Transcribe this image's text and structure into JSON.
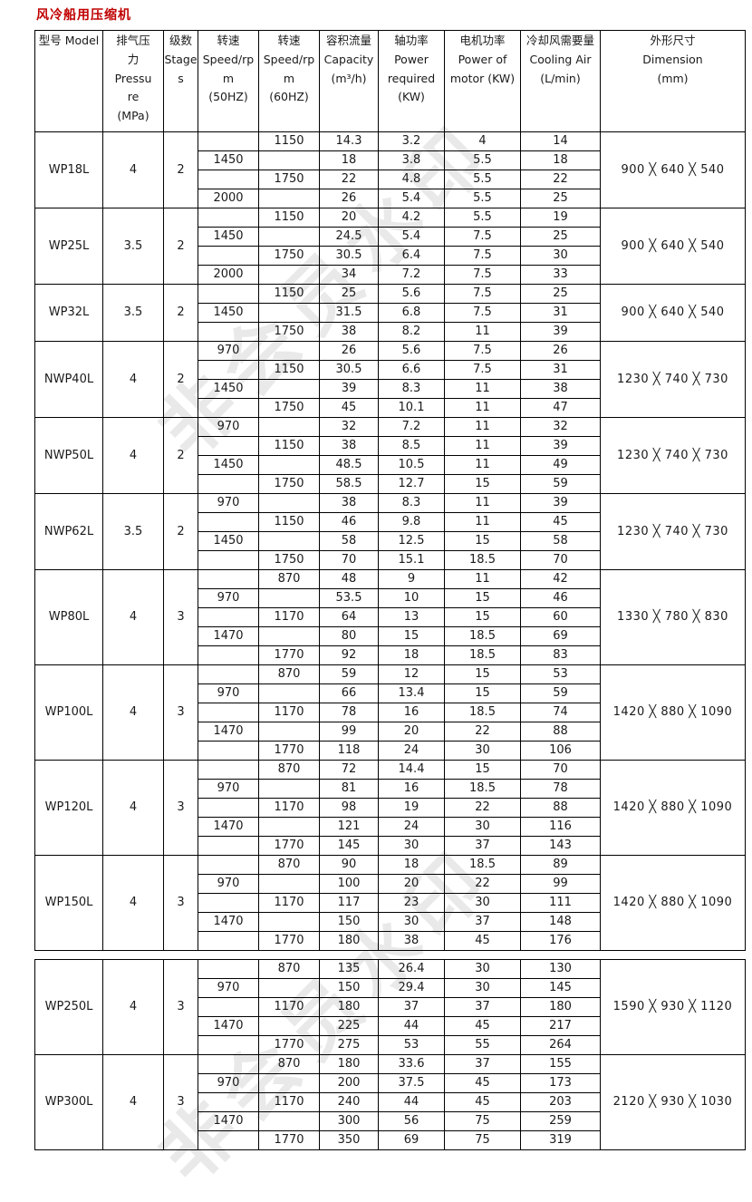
{
  "page": {
    "title": "风冷船用压缩机"
  },
  "watermark": {
    "text": "非会员水印"
  },
  "table": {
    "headers": {
      "model": "型号 Model",
      "pressure_lines": [
        "排气压",
        "力",
        "Pressu",
        "re",
        "(MPa)"
      ],
      "stage_lines": [
        "级数",
        "Stage",
        "s"
      ],
      "speed50_lines": [
        "转速",
        "Speed/rp",
        "m",
        "(50HZ)"
      ],
      "speed60_lines": [
        "转速",
        "Speed/rp",
        "m",
        "(60HZ)"
      ],
      "capacity_lines": [
        "容积流量",
        "Capacity",
        "(m³/h)"
      ],
      "power_lines": [
        "轴功率",
        "Power",
        "required",
        "(KW)"
      ],
      "motor_lines": [
        "电机功率",
        "Power of",
        "motor (KW)"
      ],
      "air_lines": [
        "冷却风需要量",
        "Cooling Air",
        "(L/min)"
      ],
      "dimension_lines": [
        "外形尺寸",
        "Dimension",
        "(mm)"
      ]
    },
    "sections": [
      {
        "groups": [
          {
            "model": "WP18L",
            "pressure": "4",
            "stage": "2",
            "dimension": "900 ╳ 640 ╳ 540",
            "rows": [
              [
                "",
                "1150",
                "14.3",
                "3.2",
                "4",
                "14"
              ],
              [
                "1450",
                "",
                "18",
                "3.8",
                "5.5",
                "18"
              ],
              [
                "",
                "1750",
                "22",
                "4.8",
                "5.5",
                "22"
              ],
              [
                "2000",
                "",
                "26",
                "5.4",
                "5.5",
                "25"
              ]
            ]
          },
          {
            "model": "WP25L",
            "pressure": "3.5",
            "stage": "2",
            "dimension": "900 ╳ 640 ╳ 540",
            "rows": [
              [
                "",
                "1150",
                "20",
                "4.2",
                "5.5",
                "19"
              ],
              [
                "1450",
                "",
                "24.5",
                "5.4",
                "7.5",
                "25"
              ],
              [
                "",
                "1750",
                "30.5",
                "6.4",
                "7.5",
                "30"
              ],
              [
                "2000",
                "",
                "34",
                "7.2",
                "7.5",
                "33"
              ]
            ]
          },
          {
            "model": "WP32L",
            "pressure": "3.5",
            "stage": "2",
            "dimension": "900 ╳ 640 ╳ 540",
            "rows": [
              [
                "",
                "1150",
                "25",
                "5.6",
                "7.5",
                "25"
              ],
              [
                "1450",
                "",
                "31.5",
                "6.8",
                "7.5",
                "31"
              ],
              [
                "",
                "1750",
                "38",
                "8.2",
                "11",
                "39"
              ]
            ]
          },
          {
            "model": "NWP40L",
            "pressure": "4",
            "stage": "2",
            "dimension": "1230 ╳ 740 ╳ 730",
            "rows": [
              [
                "970",
                "",
                "26",
                "5.6",
                "7.5",
                "26"
              ],
              [
                "",
                "1150",
                "30.5",
                "6.6",
                "7.5",
                "31"
              ],
              [
                "1450",
                "",
                "39",
                "8.3",
                "11",
                "38"
              ],
              [
                "",
                "1750",
                "45",
                "10.1",
                "11",
                "47"
              ]
            ]
          },
          {
            "model": "NWP50L",
            "pressure": "4",
            "stage": "2",
            "dimension": "1230 ╳ 740 ╳ 730",
            "rows": [
              [
                "970",
                "",
                "32",
                "7.2",
                "11",
                "32"
              ],
              [
                "",
                "1150",
                "38",
                "8.5",
                "11",
                "39"
              ],
              [
                "1450",
                "",
                "48.5",
                "10.5",
                "11",
                "49"
              ],
              [
                "",
                "1750",
                "58.5",
                "12.7",
                "15",
                "59"
              ]
            ]
          },
          {
            "model": "NWP62L",
            "pressure": "3.5",
            "stage": "2",
            "dimension": "1230 ╳ 740 ╳ 730",
            "rows": [
              [
                "970",
                "",
                "38",
                "8.3",
                "11",
                "39"
              ],
              [
                "",
                "1150",
                "46",
                "9.8",
                "11",
                "45"
              ],
              [
                "1450",
                "",
                "58",
                "12.5",
                "15",
                "58"
              ],
              [
                "",
                "1750",
                "70",
                "15.1",
                "18.5",
                "70"
              ]
            ]
          },
          {
            "model": "WP80L",
            "pressure": "4",
            "stage": "3",
            "dimension": "1330 ╳ 780 ╳ 830",
            "rows": [
              [
                "",
                "870",
                "48",
                "9",
                "11",
                "42"
              ],
              [
                "970",
                "",
                "53.5",
                "10",
                "15",
                "46"
              ],
              [
                "",
                "1170",
                "64",
                "13",
                "15",
                "60"
              ],
              [
                "1470",
                "",
                "80",
                "15",
                "18.5",
                "69"
              ],
              [
                "",
                "1770",
                "92",
                "18",
                "18.5",
                "83"
              ]
            ]
          },
          {
            "model": "WP100L",
            "pressure": "4",
            "stage": "3",
            "dimension": "1420 ╳ 880 ╳ 1090",
            "rows": [
              [
                "",
                "870",
                "59",
                "12",
                "15",
                "53"
              ],
              [
                "970",
                "",
                "66",
                "13.4",
                "15",
                "59"
              ],
              [
                "",
                "1170",
                "78",
                "16",
                "18.5",
                "74"
              ],
              [
                "1470",
                "",
                "99",
                "20",
                "22",
                "88"
              ],
              [
                "",
                "1770",
                "118",
                "24",
                "30",
                "106"
              ]
            ]
          },
          {
            "model": "WP120L",
            "pressure": "4",
            "stage": "3",
            "dimension": "1420 ╳ 880 ╳ 1090",
            "rows": [
              [
                "",
                "870",
                "72",
                "14.4",
                "15",
                "70"
              ],
              [
                "970",
                "",
                "81",
                "16",
                "18.5",
                "78"
              ],
              [
                "",
                "1170",
                "98",
                "19",
                "22",
                "88"
              ],
              [
                "1470",
                "",
                "121",
                "24",
                "30",
                "116"
              ],
              [
                "",
                "1770",
                "145",
                "30",
                "37",
                "143"
              ]
            ]
          },
          {
            "model": "WP150L",
            "pressure": "4",
            "stage": "3",
            "dimension": "1420 ╳ 880 ╳ 1090",
            "rows": [
              [
                "",
                "870",
                "90",
                "18",
                "18.5",
                "89"
              ],
              [
                "970",
                "",
                "100",
                "20",
                "22",
                "99"
              ],
              [
                "",
                "1170",
                "117",
                "23",
                "30",
                "111"
              ],
              [
                "1470",
                "",
                "150",
                "30",
                "37",
                "148"
              ],
              [
                "",
                "1770",
                "180",
                "38",
                "45",
                "176"
              ]
            ]
          }
        ]
      },
      {
        "groups": [
          {
            "model": "WP250L",
            "pressure": "4",
            "stage": "3",
            "dimension": "1590 ╳ 930 ╳ 1120",
            "rows": [
              [
                "",
                "870",
                "135",
                "26.4",
                "30",
                "130"
              ],
              [
                "970",
                "",
                "150",
                "29.4",
                "30",
                "145"
              ],
              [
                "",
                "1170",
                "180",
                "37",
                "37",
                "180"
              ],
              [
                "1470",
                "",
                "225",
                "44",
                "45",
                "217"
              ],
              [
                "",
                "1770",
                "275",
                "53",
                "55",
                "264"
              ]
            ]
          },
          {
            "model": "WP300L",
            "pressure": "4",
            "stage": "3",
            "dimension": "2120 ╳ 930 ╳ 1030",
            "rows": [
              [
                "",
                "870",
                "180",
                "33.6",
                "37",
                "155"
              ],
              [
                "970",
                "",
                "200",
                "37.5",
                "45",
                "173"
              ],
              [
                "",
                "1170",
                "240",
                "44",
                "45",
                "203"
              ],
              [
                "1470",
                "",
                "300",
                "56",
                "75",
                "259"
              ],
              [
                "",
                "1770",
                "350",
                "69",
                "75",
                "319"
              ]
            ]
          }
        ]
      }
    ]
  }
}
